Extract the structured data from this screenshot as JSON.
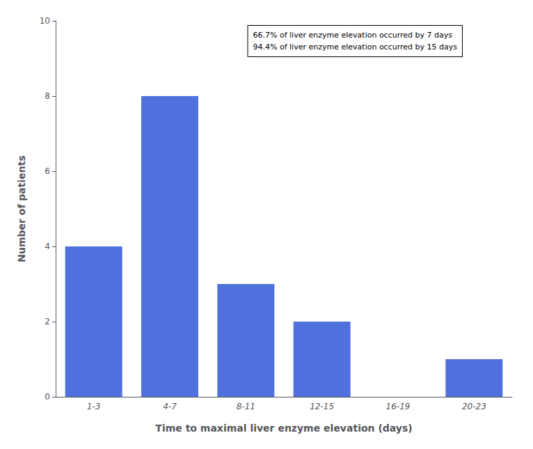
{
  "chart_data": {
    "type": "bar",
    "categories": [
      "1-3",
      "4-7",
      "8-11",
      "12-15",
      "16-19",
      "20-23"
    ],
    "values": [
      4,
      8,
      3,
      2,
      0,
      1
    ],
    "xlabel": "Time to maximal liver enzyme elevation (days)",
    "ylabel": "Number of patients",
    "ylim": [
      0,
      10
    ],
    "yticks": [
      0,
      2,
      4,
      6,
      8,
      10
    ],
    "annotations": [
      "66.7% of liver enzyme elevation occurred by 7 days",
      "94.4% of liver enzyme elevation occurred by 15 days"
    ],
    "grid": false
  }
}
